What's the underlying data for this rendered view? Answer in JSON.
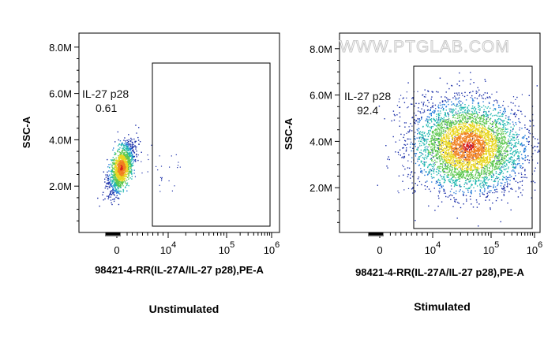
{
  "watermark": "WWW.PTGLAB.COM",
  "chart_data": [
    {
      "type": "scatter",
      "caption": "Unstimulated",
      "xlabel": "98421-4-RR(IL-27A/IL-27 p28),PE-A",
      "ylabel": "SSC-A",
      "x_scale": "biexponential",
      "x_ticks": [
        {
          "value": 0,
          "base": "0",
          "exp": ""
        },
        {
          "value": 10000,
          "base": "10",
          "exp": "4"
        },
        {
          "value": 100000,
          "base": "10",
          "exp": "5"
        },
        {
          "value": 1000000,
          "base": "10",
          "exp": "6"
        }
      ],
      "y_ticks": [
        "2.0M",
        "4.0M",
        "6.0M",
        "8.0M"
      ],
      "y_tick_values": [
        2000000,
        4000000,
        6000000,
        8000000
      ],
      "ylim": [
        0,
        8500000
      ],
      "gate": {
        "name": "IL-27 p28",
        "percent": "0.61",
        "x_range": [
          3000,
          1000000
        ],
        "y_range": [
          200000,
          7200000
        ]
      },
      "population": {
        "center_x": 800,
        "center_y": 2800000,
        "style": "density"
      },
      "colormap": [
        "#1a2ea8",
        "#1f78d8",
        "#22b8b0",
        "#5ec850",
        "#e8d620",
        "#f08020",
        "#d8201c"
      ]
    },
    {
      "type": "scatter",
      "caption": "Stimulated",
      "xlabel": "98421-4-RR(IL-27A/IL-27 p28),PE-A",
      "ylabel": "SSC-A",
      "x_scale": "biexponential",
      "x_ticks": [
        {
          "value": 0,
          "base": "0",
          "exp": ""
        },
        {
          "value": 10000,
          "base": "10",
          "exp": "4"
        },
        {
          "value": 100000,
          "base": "10",
          "exp": "5"
        },
        {
          "value": 1000000,
          "base": "10",
          "exp": "6"
        }
      ],
      "y_ticks": [
        "2.0M",
        "4.0M",
        "6.0M",
        "8.0M"
      ],
      "y_tick_values": [
        2000000,
        4000000,
        6000000,
        8000000
      ],
      "ylim": [
        0,
        8500000
      ],
      "gate": {
        "name": "IL-27 p28",
        "percent": "92.4",
        "x_range": [
          3000,
          1000000
        ],
        "y_range": [
          200000,
          7200000
        ]
      },
      "population": {
        "center_x": 40000,
        "center_y": 3800000,
        "style": "density"
      },
      "colormap": [
        "#1a2ea8",
        "#1f78d8",
        "#22b8b0",
        "#5ec850",
        "#e8d620",
        "#f08020",
        "#d8201c"
      ]
    }
  ]
}
